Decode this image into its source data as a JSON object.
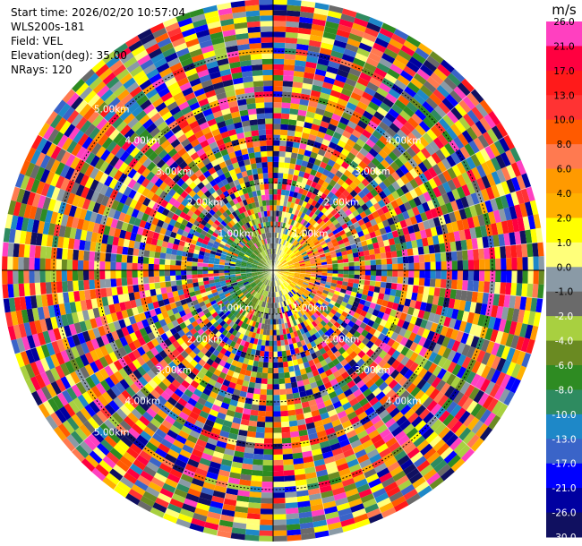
{
  "info": {
    "start_time": "Start time: 2026/02/20 10:57:04",
    "instrument": "WLS200s-181",
    "field": "Field: VEL",
    "elevation": "Elevation(deg): 35.00",
    "nrays": "NRays: 120"
  },
  "chart_data": {
    "type": "heatmap",
    "projection": "polar-ppi",
    "grid": true,
    "range_rings_km": [
      "1.00km",
      "2.00km",
      "3.00km",
      "4.00km",
      "5.00km"
    ],
    "colorbar": {
      "unit": "m/s",
      "placement": "right",
      "ticks": [
        "26.0",
        "21.0",
        "17.0",
        "13.0",
        "10.0",
        "8.0",
        "6.0",
        "4.0",
        "2.0",
        "1.0",
        "0.0",
        "-1.0",
        "-2.0",
        "-4.0",
        "-6.0",
        "-8.0",
        "-10.0",
        "-13.0",
        "-17.0",
        "-21.0",
        "-26.0",
        "-30.0"
      ],
      "colors": [
        "#ff40c0",
        "#ff0040",
        "#ff1a1a",
        "#ff3333",
        "#ff5a00",
        "#ff7a50",
        "#ff9a00",
        "#ffb000",
        "#ffff00",
        "#ffff7a",
        "#8a9aa6",
        "#6a6a6a",
        "#a8d040",
        "#6a8a22",
        "#2e8b22",
        "#2e8b60",
        "#1e88c8",
        "#3a64c8",
        "#0000ff",
        "#0000a0",
        "#101060"
      ]
    }
  }
}
